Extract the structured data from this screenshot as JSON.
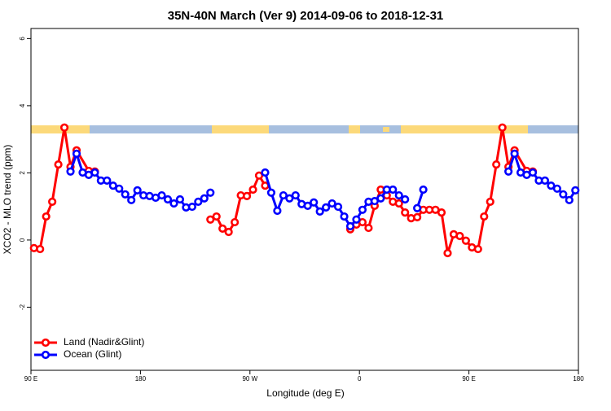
{
  "chart_data": {
    "type": "line",
    "title": "35N-40N March (Ver 9)   2014-09-06 to 2018-12-31",
    "x_label": "Longitude (deg E)",
    "y_label": "XCO2 - MLO trend (ppm)",
    "xlim": [
      90,
      540
    ],
    "xticks": [
      {
        "value": 90,
        "label": "90 E"
      },
      {
        "value": 180,
        "label": "180"
      },
      {
        "value": 270,
        "label": "90 W"
      },
      {
        "value": 360,
        "label": "0"
      },
      {
        "value": 450,
        "label": "90 E"
      },
      {
        "value": 540,
        "label": "180"
      }
    ],
    "ylim": [
      -3.88,
      6.3
    ],
    "yticks": [
      -2,
      0,
      2,
      4,
      6
    ],
    "legend": "bottom-left",
    "series": [
      {
        "name": "Land (Nadir&Glint)",
        "color": "#ff0000",
        "x": [
          92.5,
          97.5,
          102.5,
          107.5,
          112.5,
          117.5,
          122.5,
          127.5,
          137.5,
          142.5,
          147.5,
          237.5,
          242.5,
          247.5,
          252.5,
          257.5,
          262.5,
          267.5,
          272.5,
          277.5,
          282.5,
          287.5,
          352.5,
          357.5,
          362.5,
          367.5,
          372.5,
          377.5,
          382.5,
          387.5,
          392.5,
          397.5,
          402.5,
          407.5,
          412.5,
          417.5,
          422.5,
          427.5,
          432.5,
          437.5,
          442.5,
          447.5,
          452.5,
          457.5,
          462.5,
          467.5,
          472.5,
          477.5,
          482.5,
          487.5,
          497.5,
          502.5
        ],
        "values": [
          -0.24,
          -0.27,
          0.7,
          1.14,
          2.25,
          3.35,
          2.18,
          2.67,
          2.06,
          2.04,
          null,
          0.61,
          0.7,
          0.34,
          0.24,
          0.53,
          1.33,
          1.31,
          1.5,
          1.92,
          1.62,
          null,
          0.32,
          0.46,
          0.53,
          0.36,
          1.02,
          1.5,
          1.33,
          1.14,
          1.09,
          0.82,
          0.65,
          0.68,
          0.9,
          0.9,
          0.9,
          0.82,
          -0.39,
          0.17,
          0.12,
          -0.02,
          -0.22,
          -0.27,
          0.7,
          1.14,
          2.25,
          3.35,
          2.18,
          2.67,
          2.06,
          2.04
        ]
      },
      {
        "name": "Ocean (Glint)",
        "color": "#0000ff",
        "x": [
          122.5,
          127.5,
          132.5,
          137.5,
          142.5,
          147.5,
          152.5,
          157.5,
          162.5,
          167.5,
          172.5,
          177.5,
          182.5,
          187.5,
          192.5,
          197.5,
          202.5,
          207.5,
          212.5,
          217.5,
          222.5,
          227.5,
          232.5,
          237.5,
          242.5,
          282.5,
          287.5,
          292.5,
          297.5,
          302.5,
          307.5,
          312.5,
          317.5,
          322.5,
          327.5,
          332.5,
          337.5,
          342.5,
          347.5,
          352.5,
          357.5,
          362.5,
          367.5,
          372.5,
          377.5,
          382.5,
          387.5,
          392.5,
          397.5,
          402.5,
          407.5,
          412.5,
          417.5,
          482.5,
          487.5,
          492.5,
          497.5,
          502.5,
          507.5,
          512.5,
          517.5,
          522.5,
          527.5,
          532.5,
          537.5
        ],
        "values": [
          2.04,
          2.57,
          2.01,
          1.94,
          2.01,
          1.77,
          1.77,
          1.62,
          1.53,
          1.36,
          1.19,
          1.48,
          1.33,
          1.31,
          1.26,
          1.33,
          1.21,
          1.09,
          1.21,
          0.97,
          0.99,
          1.14,
          1.24,
          1.41,
          null,
          2.01,
          1.41,
          0.87,
          1.33,
          1.24,
          1.33,
          1.07,
          1.02,
          1.12,
          0.85,
          0.97,
          1.09,
          0.99,
          0.7,
          0.41,
          0.61,
          0.9,
          1.14,
          1.16,
          1.24,
          1.5,
          1.5,
          1.33,
          1.21,
          null,
          0.95,
          1.5,
          null,
          2.04,
          2.57,
          2.01,
          1.94,
          2.01,
          1.77,
          1.77,
          1.62,
          1.53,
          1.36,
          1.19,
          1.48
        ]
      }
    ]
  }
}
